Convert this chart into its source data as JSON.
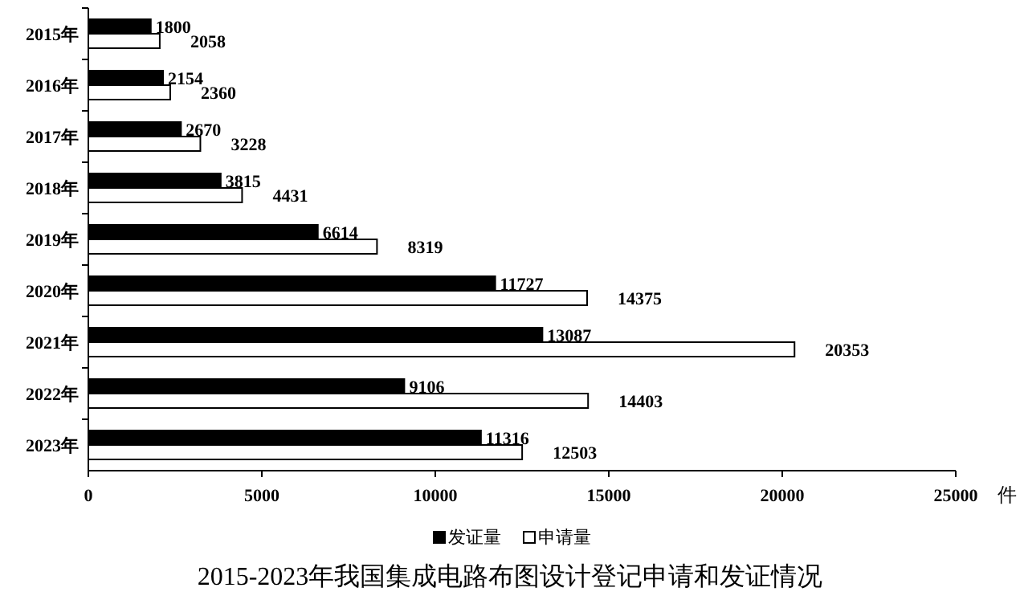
{
  "chart_data": {
    "type": "bar",
    "orientation": "horizontal",
    "title": "2015-2023年我国集成电路布图设计登记申请和发证情况",
    "xlabel": "件",
    "categories": [
      "2015年",
      "2016年",
      "2017年",
      "2018年",
      "2019年",
      "2020年",
      "2021年",
      "2022年",
      "2023年"
    ],
    "series": [
      {
        "name": "发证量",
        "color": "#000000",
        "values": [
          1800,
          2154,
          2670,
          3815,
          6614,
          11727,
          13087,
          9106,
          11316
        ]
      },
      {
        "name": "申请量",
        "color": "#ffffff",
        "values": [
          2058,
          2360,
          3228,
          4431,
          8319,
          14375,
          20353,
          14403,
          12503
        ]
      }
    ],
    "xlim": [
      0,
      25000
    ],
    "xticks": [
      0,
      5000,
      10000,
      15000,
      20000,
      25000
    ],
    "data_labels": true,
    "legend": "bottom"
  }
}
